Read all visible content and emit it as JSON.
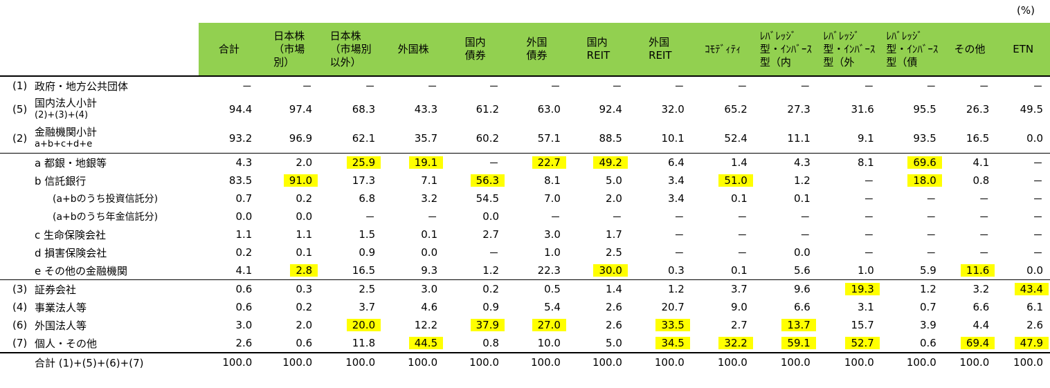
{
  "unit": "(%)",
  "columns": [
    "合計",
    "日本株\n（市場\n別）",
    "日本株\n（市場別\n以外）",
    "外国株",
    "国内\n債券",
    "外国\n債券",
    "国内\nREIT",
    "外国\nREIT",
    "ｺﾓﾃﾞｨﾃｨ",
    "ﾚﾊﾞﾚｯｼﾞ\n型・ｲﾝﾊﾞｰｽ\n型（内",
    "ﾚﾊﾞﾚｯｼﾞ\n型・ｲﾝﾊﾞｰｽ\n型（外",
    "ﾚﾊﾞﾚｯｼﾞ\n型・ｲﾝﾊﾞｰｽ\n型（債",
    "その他",
    "ETN"
  ],
  "rows": [
    {
      "num": "(1)",
      "label": "政府・地方公共団体",
      "sublabel": "",
      "values": [
        "－",
        "－",
        "－",
        "－",
        "－",
        "－",
        "－",
        "－",
        "－",
        "－",
        "－",
        "－",
        "－",
        "－"
      ],
      "hl": []
    },
    {
      "num": "(5)",
      "label": "国内法人小計",
      "sublabel": "(2)+(3)+(4)",
      "values": [
        "94.4",
        "97.4",
        "68.3",
        "43.3",
        "61.2",
        "63.0",
        "92.4",
        "32.0",
        "65.2",
        "27.3",
        "31.6",
        "95.5",
        "26.3",
        "49.5"
      ],
      "hl": []
    },
    {
      "num": "(2)",
      "label": "金融機関小計",
      "sublabel": "a+b+c+d+e",
      "values": [
        "93.2",
        "96.9",
        "62.1",
        "35.7",
        "60.2",
        "57.1",
        "88.5",
        "10.1",
        "52.4",
        "11.1",
        "9.1",
        "93.5",
        "16.5",
        "0.0"
      ],
      "hl": []
    },
    {
      "num": "",
      "label": "a 都銀・地銀等",
      "sublabel": "",
      "values": [
        "4.3",
        "2.0",
        "25.9",
        "19.1",
        "－",
        "22.7",
        "49.2",
        "6.4",
        "1.4",
        "4.3",
        "8.1",
        "69.6",
        "4.1",
        "－"
      ],
      "hl": [
        2,
        3,
        5,
        6,
        11
      ]
    },
    {
      "num": "",
      "label": "b 信託銀行",
      "sublabel": "",
      "values": [
        "83.5",
        "91.0",
        "17.3",
        "7.1",
        "56.3",
        "8.1",
        "5.0",
        "3.4",
        "51.0",
        "1.2",
        "－",
        "18.0",
        "0.8",
        "－"
      ],
      "hl": [
        1,
        4,
        8,
        11
      ]
    },
    {
      "num": "",
      "label": "(a+bのうち投資信託分)",
      "sublabel": "",
      "values": [
        "0.7",
        "0.2",
        "6.8",
        "3.2",
        "54.5",
        "7.0",
        "2.0",
        "3.4",
        "0.1",
        "0.1",
        "－",
        "－",
        "－",
        "－"
      ],
      "hl": []
    },
    {
      "num": "",
      "label": "(a+bのうち年金信託分)",
      "sublabel": "",
      "values": [
        "0.0",
        "0.0",
        "－",
        "－",
        "0.0",
        "－",
        "－",
        "－",
        "－",
        "－",
        "－",
        "－",
        "－",
        "－"
      ],
      "hl": []
    },
    {
      "num": "",
      "label": "c 生命保険会社",
      "sublabel": "",
      "values": [
        "1.1",
        "1.1",
        "1.5",
        "0.1",
        "2.7",
        "3.0",
        "1.7",
        "－",
        "－",
        "－",
        "－",
        "－",
        "－",
        "－"
      ],
      "hl": []
    },
    {
      "num": "",
      "label": "d 損害保険会社",
      "sublabel": "",
      "values": [
        "0.2",
        "0.1",
        "0.9",
        "0.0",
        "－",
        "1.0",
        "2.5",
        "－",
        "－",
        "0.0",
        "－",
        "－",
        "－",
        "－"
      ],
      "hl": []
    },
    {
      "num": "",
      "label": "e その他の金融機関",
      "sublabel": "",
      "values": [
        "4.1",
        "2.8",
        "16.5",
        "9.3",
        "1.2",
        "22.3",
        "30.0",
        "0.3",
        "0.1",
        "5.6",
        "1.0",
        "5.9",
        "11.6",
        "0.0"
      ],
      "hl": [
        1,
        6,
        12
      ]
    },
    {
      "num": "(3)",
      "label": "証券会社",
      "sublabel": "",
      "values": [
        "0.6",
        "0.3",
        "2.5",
        "3.0",
        "0.2",
        "0.5",
        "1.4",
        "1.2",
        "3.7",
        "9.6",
        "19.3",
        "1.2",
        "3.2",
        "43.4"
      ],
      "hl": [
        10,
        13
      ]
    },
    {
      "num": "(4)",
      "label": "事業法人等",
      "sublabel": "",
      "values": [
        "0.6",
        "0.2",
        "3.7",
        "4.6",
        "0.9",
        "5.4",
        "2.6",
        "20.7",
        "9.0",
        "6.6",
        "3.1",
        "0.7",
        "6.6",
        "6.1"
      ],
      "hl": []
    },
    {
      "num": "(6)",
      "label": "外国法人等",
      "sublabel": "",
      "values": [
        "3.0",
        "2.0",
        "20.0",
        "12.2",
        "37.9",
        "27.0",
        "2.6",
        "33.5",
        "2.7",
        "13.7",
        "15.7",
        "3.9",
        "4.4",
        "2.6"
      ],
      "hl": [
        2,
        4,
        5,
        7,
        9
      ]
    },
    {
      "num": "(7)",
      "label": "個人・その他",
      "sublabel": "",
      "values": [
        "2.6",
        "0.6",
        "11.8",
        "44.5",
        "0.8",
        "10.0",
        "5.0",
        "34.5",
        "32.2",
        "59.1",
        "52.7",
        "0.6",
        "69.4",
        "47.9"
      ],
      "hl": [
        3,
        7,
        8,
        9,
        10,
        12,
        13
      ]
    },
    {
      "num": "",
      "label": "合計 (1)+(5)+(6)+(7)",
      "sublabel": "",
      "values": [
        "100.0",
        "100.0",
        "100.0",
        "100.0",
        "100.0",
        "100.0",
        "100.0",
        "100.0",
        "100.0",
        "100.0",
        "100.0",
        "100.0",
        "100.0",
        "100.0"
      ],
      "hl": []
    }
  ]
}
